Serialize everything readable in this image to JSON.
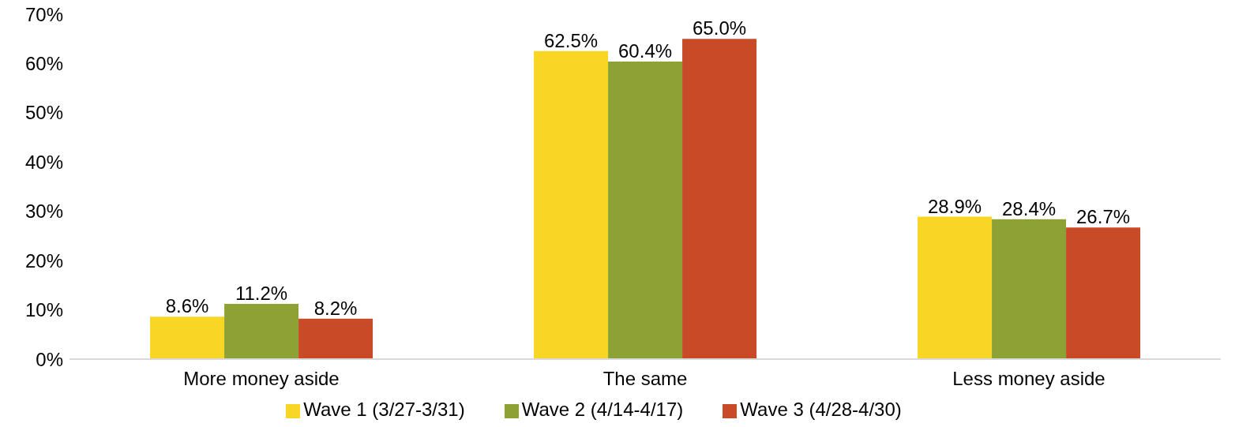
{
  "chart_data": {
    "type": "bar",
    "categories": [
      "More money aside",
      "The same",
      "Less money aside"
    ],
    "series": [
      {
        "name": "Wave 1 (3/27-3/31)",
        "color": "#f9d524",
        "values": [
          8.6,
          62.5,
          28.9
        ],
        "value_labels": [
          "8.6%",
          "62.5%",
          "28.9%"
        ]
      },
      {
        "name": "Wave 2 (4/14-4/17)",
        "color": "#8ea135",
        "values": [
          11.2,
          60.4,
          28.4
        ],
        "value_labels": [
          "11.2%",
          "60.4%",
          "28.4%"
        ]
      },
      {
        "name": "Wave 3 (4/28-4/30)",
        "color": "#c94a27",
        "values": [
          8.2,
          65.0,
          26.7
        ],
        "value_labels": [
          "8.2%",
          "65.0%",
          "26.7%"
        ]
      }
    ],
    "ylim": [
      0,
      70
    ],
    "yticks": [
      {
        "value": 0,
        "label": "0%"
      },
      {
        "value": 10,
        "label": "10%"
      },
      {
        "value": 20,
        "label": "20%"
      },
      {
        "value": 30,
        "label": "30%"
      },
      {
        "value": 40,
        "label": "40%"
      },
      {
        "value": 50,
        "label": "50%"
      },
      {
        "value": 60,
        "label": "60%"
      },
      {
        "value": 70,
        "label": "70%"
      }
    ],
    "grid": false,
    "legend": "bottom"
  }
}
